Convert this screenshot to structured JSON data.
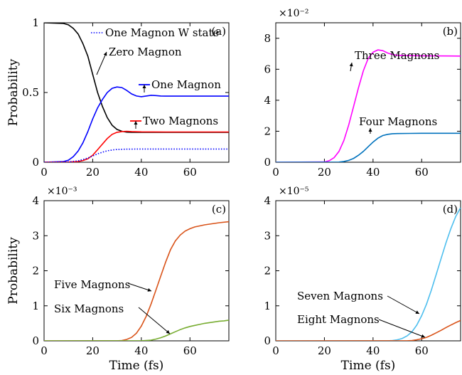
{
  "chart_data": [
    {
      "type": "line",
      "panel_label": "(a)",
      "xlim": [
        0,
        76
      ],
      "ylim": [
        0,
        1
      ],
      "xticks": [
        "0",
        "20",
        "40",
        "60"
      ],
      "yticks": [
        "0",
        "0.5",
        "1"
      ],
      "xlabel": "",
      "ylabel": "Probability",
      "multiplier": "",
      "series": [
        {
          "name": "Zero Magnon",
          "color": "#000000",
          "dash": false,
          "x": [
            0,
            8,
            10,
            12,
            14,
            16,
            18,
            20,
            22,
            24,
            26,
            28,
            30,
            32,
            34,
            36,
            38,
            40,
            45,
            50,
            60,
            76
          ],
          "y": [
            1,
            0.995,
            0.985,
            0.96,
            0.92,
            0.85,
            0.76,
            0.63,
            0.5,
            0.4,
            0.32,
            0.265,
            0.235,
            0.222,
            0.216,
            0.215,
            0.215,
            0.215,
            0.215,
            0.215,
            0.215,
            0.215
          ]
        },
        {
          "name": "One Magnon",
          "color": "#0000ff",
          "dash": false,
          "x": [
            0,
            8,
            10,
            12,
            14,
            16,
            18,
            20,
            22,
            24,
            26,
            28,
            30,
            32,
            34,
            36,
            38,
            40,
            42,
            44,
            46,
            48,
            50,
            55,
            60,
            76
          ],
          "y": [
            0,
            0.005,
            0.015,
            0.04,
            0.08,
            0.14,
            0.22,
            0.31,
            0.39,
            0.45,
            0.5,
            0.53,
            0.54,
            0.535,
            0.515,
            0.49,
            0.475,
            0.47,
            0.475,
            0.48,
            0.478,
            0.475,
            0.474,
            0.474,
            0.474,
            0.474
          ]
        },
        {
          "name": "Two Magnons",
          "color": "#ff0000",
          "dash": false,
          "x": [
            0,
            10,
            14,
            16,
            18,
            20,
            22,
            24,
            26,
            28,
            30,
            32,
            34,
            36,
            40,
            50,
            60,
            76
          ],
          "y": [
            0,
            0.001,
            0.005,
            0.012,
            0.025,
            0.05,
            0.09,
            0.13,
            0.17,
            0.2,
            0.215,
            0.22,
            0.222,
            0.22,
            0.218,
            0.217,
            0.217,
            0.217
          ]
        },
        {
          "name": "One Magnon W state",
          "color": "#0000ff",
          "dash": true,
          "x": [
            0,
            10,
            14,
            16,
            18,
            20,
            22,
            24,
            26,
            28,
            30,
            34,
            40,
            50,
            60,
            76
          ],
          "y": [
            0,
            0.002,
            0.01,
            0.02,
            0.03,
            0.045,
            0.06,
            0.072,
            0.082,
            0.088,
            0.092,
            0.094,
            0.095,
            0.095,
            0.095,
            0.095
          ]
        }
      ],
      "annotations": [
        {
          "text": "One Magnon W state",
          "marker": "dots",
          "color": "#0000ff"
        },
        {
          "text": "Zero Magnon",
          "marker": "arrow",
          "color": "#000000"
        },
        {
          "text": "One Magnon",
          "marker": "arrow",
          "color": "#0000ff"
        },
        {
          "text": "Two Magnons",
          "marker": "arrow",
          "color": "#ff0000"
        }
      ]
    },
    {
      "type": "line",
      "panel_label": "(b)",
      "xlim": [
        0,
        76
      ],
      "ylim": [
        0,
        9
      ],
      "xticks": [
        "0",
        "20",
        "40",
        "60"
      ],
      "yticks": [
        "0",
        "2",
        "4",
        "6",
        "8"
      ],
      "xlabel": "",
      "ylabel": "",
      "multiplier": "×10⁻²",
      "series": [
        {
          "name": "Three Magnons",
          "color": "#ff00ff",
          "dash": false,
          "x": [
            0,
            20,
            22,
            24,
            26,
            28,
            30,
            32,
            34,
            36,
            38,
            40,
            42,
            44,
            46,
            48,
            50,
            55,
            60,
            76
          ],
          "y": [
            0,
            0.02,
            0.1,
            0.3,
            0.7,
            1.4,
            2.4,
            3.6,
            4.8,
            5.9,
            6.7,
            7.1,
            7.25,
            7.2,
            7.05,
            6.95,
            6.9,
            6.88,
            6.87,
            6.85
          ]
        },
        {
          "name": "Four Magnons",
          "color": "#0072bd",
          "dash": false,
          "x": [
            0,
            26,
            28,
            30,
            32,
            34,
            36,
            38,
            40,
            42,
            44,
            46,
            48,
            50,
            55,
            60,
            76
          ],
          "y": [
            0,
            0.01,
            0.05,
            0.12,
            0.25,
            0.45,
            0.7,
            1.0,
            1.3,
            1.55,
            1.72,
            1.8,
            1.84,
            1.85,
            1.86,
            1.87,
            1.87
          ]
        }
      ],
      "annotations": [
        {
          "text": "Three Magnons",
          "marker": "arrow",
          "color": "#ff00ff"
        },
        {
          "text": "Four Magnons",
          "marker": "arrow",
          "color": "#0072bd"
        }
      ]
    },
    {
      "type": "line",
      "panel_label": "(c)",
      "xlim": [
        0,
        76
      ],
      "ylim": [
        0,
        4
      ],
      "xticks": [
        "0",
        "20",
        "40",
        "60"
      ],
      "yticks": [
        "0",
        "1",
        "2",
        "3",
        "4"
      ],
      "xlabel": "Time (fs)",
      "ylabel": "Probability",
      "multiplier": "×10⁻³",
      "series": [
        {
          "name": "Five Magnons",
          "color": "#d95319",
          "dash": false,
          "x": [
            0,
            30,
            32,
            34,
            36,
            38,
            40,
            42,
            44,
            46,
            48,
            50,
            52,
            54,
            56,
            58,
            60,
            62,
            64,
            66,
            68,
            70,
            72,
            76
          ],
          "y": [
            0,
            0.002,
            0.01,
            0.04,
            0.1,
            0.22,
            0.42,
            0.7,
            1.05,
            1.45,
            1.85,
            2.25,
            2.6,
            2.85,
            3.02,
            3.13,
            3.2,
            3.25,
            3.28,
            3.31,
            3.33,
            3.35,
            3.37,
            3.4
          ]
        },
        {
          "name": "Six Magnons",
          "color": "#77ac30",
          "dash": false,
          "x": [
            0,
            40,
            44,
            46,
            48,
            50,
            52,
            54,
            56,
            58,
            60,
            62,
            64,
            66,
            68,
            70,
            72,
            74,
            76
          ],
          "y": [
            0,
            0.002,
            0.02,
            0.05,
            0.09,
            0.14,
            0.2,
            0.26,
            0.32,
            0.37,
            0.41,
            0.44,
            0.47,
            0.5,
            0.52,
            0.54,
            0.56,
            0.57,
            0.59
          ]
        }
      ],
      "annotations": [
        {
          "text": "Five Magnons",
          "marker": "arrow",
          "color": "#d95319"
        },
        {
          "text": "Six Magnons",
          "marker": "arrow",
          "color": "#77ac30"
        }
      ]
    },
    {
      "type": "line",
      "panel_label": "(d)",
      "xlim": [
        0,
        76
      ],
      "ylim": [
        0,
        4
      ],
      "xticks": [
        "0",
        "20",
        "40",
        "60"
      ],
      "yticks": [
        "0",
        "1",
        "2",
        "3",
        "4"
      ],
      "xlabel": "Time (fs)",
      "ylabel": "",
      "multiplier": "×10⁻⁵",
      "series": [
        {
          "name": "Seven Magnons",
          "color": "#4dbeee",
          "dash": false,
          "x": [
            0,
            46,
            48,
            50,
            52,
            54,
            56,
            58,
            60,
            62,
            64,
            66,
            68,
            70,
            72,
            74,
            76
          ],
          "y": [
            0,
            0.002,
            0.01,
            0.03,
            0.07,
            0.14,
            0.26,
            0.45,
            0.72,
            1.05,
            1.45,
            1.9,
            2.35,
            2.8,
            3.2,
            3.55,
            3.8
          ]
        },
        {
          "name": "Eight Magnons",
          "color": "#d95319",
          "dash": false,
          "x": [
            0,
            54,
            56,
            58,
            60,
            62,
            64,
            66,
            68,
            70,
            72,
            74,
            76
          ],
          "y": [
            0,
            0.002,
            0.01,
            0.03,
            0.06,
            0.1,
            0.16,
            0.23,
            0.3,
            0.38,
            0.45,
            0.52,
            0.58
          ]
        }
      ],
      "annotations": [
        {
          "text": "Seven Magnons",
          "marker": "arrow",
          "color": "#4dbeee"
        },
        {
          "text": "Eight Magnons",
          "marker": "arrow",
          "color": "#d95319"
        }
      ]
    }
  ]
}
